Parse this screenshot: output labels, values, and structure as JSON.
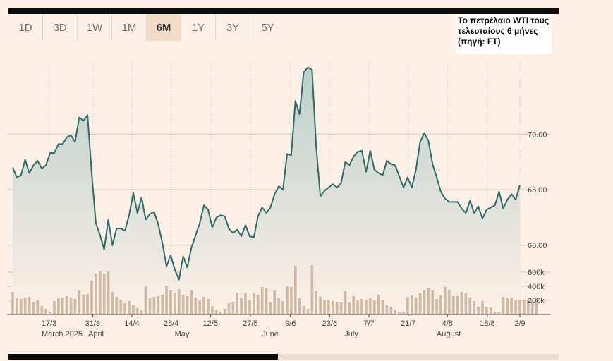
{
  "tabs": [
    "1D",
    "3D",
    "1W",
    "1M",
    "6M",
    "1Y",
    "3Y",
    "5Y"
  ],
  "active_tab": "6M",
  "caption": "Το πετρέλαιο WTI τους τελευταίους 6 μήνες (πηγή: FT)",
  "colors": {
    "line": "#2f6b6c",
    "fill_top": "#bccfcb",
    "volume": "#cfb9a4",
    "grid": "#d8cbc0",
    "background": "#fdf1e7"
  },
  "chart_data": {
    "type": "line",
    "title": "Το πετρέλαιο WTI τους τελευταίους 6 μήνες (πηγή: FT)",
    "price_axis": {
      "ylim": [
        57,
        77
      ],
      "ticks": [
        "60.00",
        "65.00",
        "70.00"
      ],
      "tick_values": [
        60,
        65,
        70
      ]
    },
    "volume_axis": {
      "ylim": [
        0,
        820
      ],
      "ticks": [
        "200k",
        "400k",
        "600k"
      ],
      "tick_values": [
        200,
        400,
        600
      ]
    },
    "x_tick_labels": [
      "17/3",
      "31/3",
      "14/4",
      "28/4",
      "12/5",
      "27/5",
      "9/6",
      "23/6",
      "7/7",
      "21/7",
      "4/8",
      "18/8",
      "2/9"
    ],
    "month_labels": [
      "March 2025",
      "April",
      "May",
      "June",
      "July",
      "August"
    ],
    "grid": true,
    "series": [
      {
        "type": "line",
        "values": [
          67.0,
          66.1,
          66.3,
          67.7,
          66.5,
          67.2,
          67.6,
          66.9,
          67.2,
          68.3,
          68.3,
          69.1,
          69.1,
          69.7,
          69.9,
          69.3,
          71.5,
          71.2,
          71.7,
          66.5,
          62.0,
          60.9,
          59.6,
          62.3,
          60.0,
          61.5,
          61.5,
          61.3,
          62.7,
          64.7,
          62.9,
          64.3,
          62.3,
          62.8,
          63.0,
          61.9,
          60.2,
          58.1,
          59.1,
          57.8,
          56.9,
          59.0,
          58.0,
          59.8,
          60.9,
          62.0,
          63.6,
          63.2,
          61.6,
          62.5,
          62.7,
          62.6,
          61.5,
          61.1,
          61.4,
          60.8,
          61.8,
          60.8,
          60.7,
          62.6,
          63.4,
          62.9,
          63.4,
          64.6,
          65.3,
          65.0,
          68.2,
          68.1,
          73.0,
          71.8,
          75.6,
          76.0,
          75.8,
          68.9,
          64.4,
          64.9,
          65.2,
          65.5,
          65.2,
          65.6,
          67.5,
          67.2,
          68.0,
          68.4,
          68.5,
          66.6,
          68.5,
          66.8,
          66.5,
          66.3,
          67.6,
          67.3,
          67.2,
          66.2,
          65.2,
          66.1,
          65.2,
          66.8,
          69.3,
          70.1,
          69.4,
          67.3,
          66.1,
          64.8,
          64.2,
          63.9,
          63.9,
          63.9,
          63.3,
          62.9,
          64.0,
          62.9,
          63.5,
          62.4,
          63.2,
          63.4,
          63.6,
          64.8,
          63.3,
          64.1,
          64.6,
          64.1,
          65.4
        ]
      },
      {
        "type": "bar",
        "name": "volume",
        "values": [
          320,
          230,
          220,
          240,
          250,
          170,
          200,
          120,
          80,
          30,
          190,
          230,
          240,
          260,
          240,
          220,
          340,
          280,
          290,
          480,
          580,
          620,
          580,
          610,
          320,
          250,
          210,
          160,
          190,
          140,
          90,
          60,
          400,
          230,
          250,
          260,
          280,
          410,
          340,
          310,
          360,
          280,
          260,
          340,
          240,
          200,
          250,
          220,
          120,
          60,
          40,
          80,
          160,
          180,
          310,
          230,
          300,
          200,
          300,
          280,
          390,
          370,
          170,
          340,
          230,
          190,
          400,
          390,
          690,
          230,
          120,
          80,
          700,
          330,
          250,
          210,
          210,
          190,
          180,
          170,
          330,
          170,
          260,
          200,
          220,
          210,
          230,
          200,
          280,
          200,
          130,
          110,
          60,
          30,
          40,
          250,
          270,
          230,
          300,
          340,
          380,
          340,
          220,
          270,
          390,
          350,
          260,
          260,
          320,
          310,
          240,
          190,
          110,
          190,
          110,
          100,
          40,
          30,
          250,
          230,
          240,
          200,
          200,
          210,
          210,
          200,
          230
        ]
      }
    ]
  }
}
